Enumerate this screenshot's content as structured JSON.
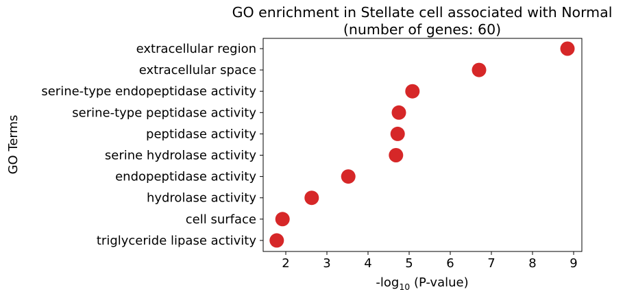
{
  "chart_data": {
    "type": "scatter",
    "title_line1": "GO enrichment in Stellate cell associated with Normal",
    "title_line2": "(number of genes: 60)",
    "xlabel_prefix": "-log",
    "xlabel_sub": "10",
    "xlabel_suffix": " (P-value)",
    "ylabel": "GO Terms",
    "xlim": [
      1.45,
      9.2
    ],
    "xticks": [
      2,
      3,
      4,
      5,
      6,
      7,
      8,
      9
    ],
    "grid": false,
    "marker_color": "#d62728",
    "points": [
      {
        "term": "extracellular region",
        "value": 8.85
      },
      {
        "term": "extracellular space",
        "value": 6.7
      },
      {
        "term": "serine-type endopeptidase activity",
        "value": 5.08
      },
      {
        "term": "serine-type peptidase activity",
        "value": 4.75
      },
      {
        "term": "peptidase activity",
        "value": 4.72
      },
      {
        "term": "serine hydrolase activity",
        "value": 4.68
      },
      {
        "term": "endopeptidase activity",
        "value": 3.52
      },
      {
        "term": "hydrolase activity",
        "value": 2.63
      },
      {
        "term": "cell surface",
        "value": 1.92
      },
      {
        "term": "triglyceride lipase activity",
        "value": 1.78
      }
    ]
  }
}
